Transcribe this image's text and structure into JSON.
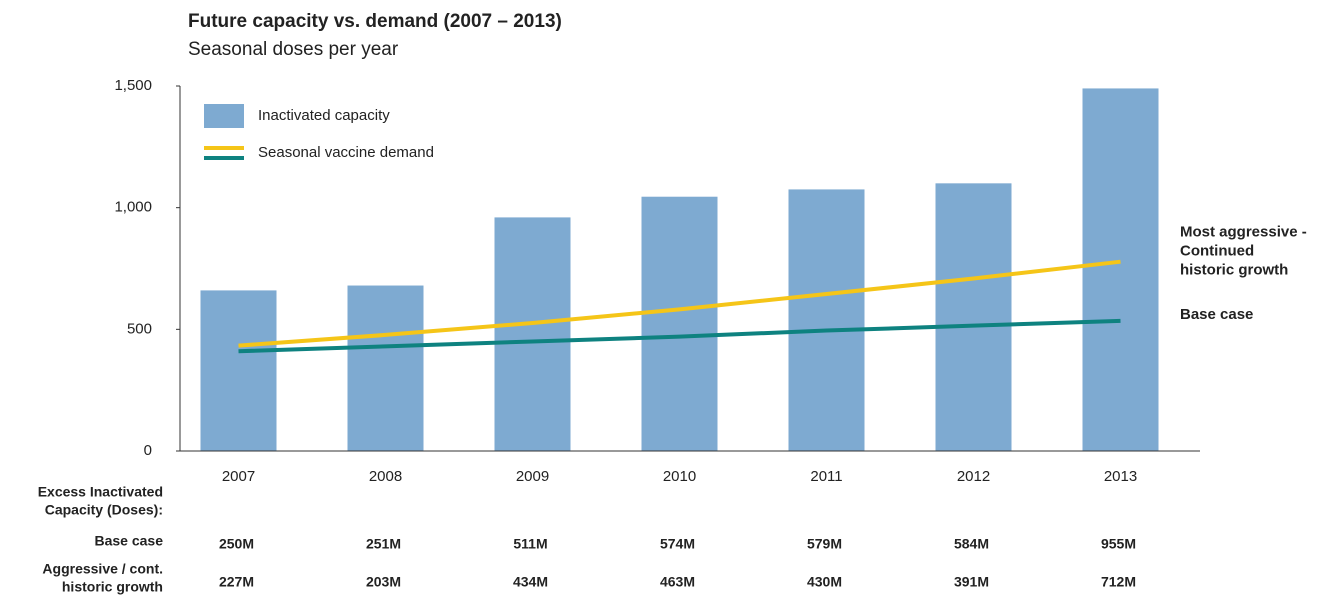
{
  "chart_data": {
    "type": "bar",
    "title": "Future capacity vs. demand (2007 – 2013)",
    "subtitle": "Seasonal doses per year",
    "categories": [
      "2007",
      "2008",
      "2009",
      "2010",
      "2011",
      "2012",
      "2013"
    ],
    "series": [
      {
        "name": "Inactivated capacity",
        "type": "bar",
        "color": "#7eaad1",
        "values": [
          660,
          680,
          960,
          1045,
          1075,
          1100,
          1490
        ]
      },
      {
        "name": "Seasonal vaccine demand",
        "type": "line",
        "color": "#f5c518",
        "values": [
          433,
          477,
          526,
          582,
          645,
          709,
          778
        ]
      },
      {
        "name": "Seasonal vaccine demand",
        "type": "line",
        "color": "#0e8280",
        "values": [
          410,
          430,
          450,
          470,
          495,
          515,
          535
        ]
      }
    ],
    "legend_series": [
      0,
      1
    ],
    "line_labels": [
      {
        "series": 1,
        "lines": [
          "Most aggressive -",
          "Continued",
          "historic growth"
        ]
      },
      {
        "series": 2,
        "lines": [
          "Base case"
        ]
      }
    ],
    "ylim": [
      0,
      1500
    ],
    "yticks": [
      0,
      500,
      {
        "value": 1000,
        "label": "1,000"
      },
      {
        "value": 1500,
        "label": "1,500"
      }
    ],
    "grid": false,
    "table": {
      "header": [
        "Excess Inactivated",
        "Capacity (Doses):"
      ],
      "rows": [
        {
          "label": [
            "Base case"
          ],
          "values": [
            "250M",
            "251M",
            "511M",
            "574M",
            "579M",
            "584M",
            "955M"
          ]
        },
        {
          "label": [
            "Aggressive / cont.",
            "historic growth"
          ],
          "values": [
            "227M",
            "203M",
            "434M",
            "463M",
            "430M",
            "391M",
            "712M"
          ]
        }
      ]
    }
  }
}
